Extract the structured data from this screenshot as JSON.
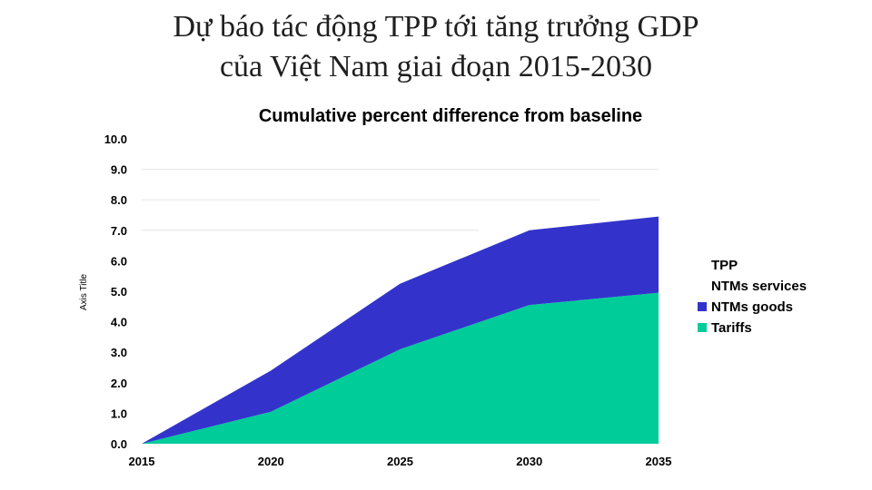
{
  "slide": {
    "title_line1": "Dự báo tác động TPP tới tăng trưởng GDP",
    "title_line2": "của Việt Nam giai đoạn 2015-2030"
  },
  "chart_data": {
    "type": "area",
    "stacked": true,
    "title": "Cumulative percent difference from baseline",
    "ylabel": "Axis Title",
    "xlabel": "",
    "x": [
      2015,
      2020,
      2025,
      2030,
      2035
    ],
    "xticks": [
      "2015",
      "2020",
      "2025",
      "2030",
      "2035"
    ],
    "yticks": [
      "0.0",
      "1.0",
      "2.0",
      "3.0",
      "4.0",
      "5.0",
      "6.0",
      "7.0",
      "8.0",
      "9.0",
      "10.0"
    ],
    "ylim": [
      0,
      10
    ],
    "grid": false,
    "legend_position": "right",
    "series": [
      {
        "name": "Tariffs",
        "color": "#00cc99",
        "values": [
          0.0,
          1.05,
          3.1,
          4.55,
          4.95
        ]
      },
      {
        "name": "NTMs goods",
        "color": "#3333cc",
        "values": [
          0.0,
          1.35,
          2.15,
          2.45,
          2.5
        ]
      },
      {
        "name": "NTMs services",
        "color": "#ffffff",
        "values": [
          0.0,
          0.0,
          0.0,
          0.0,
          0.0
        ]
      },
      {
        "name": "TPP",
        "color": "#ffffff",
        "values": [
          0.0,
          0.0,
          0.0,
          0.0,
          0.0
        ]
      }
    ],
    "legend_order": [
      "TPP",
      "NTMs services",
      "NTMs goods",
      "Tariffs"
    ]
  }
}
